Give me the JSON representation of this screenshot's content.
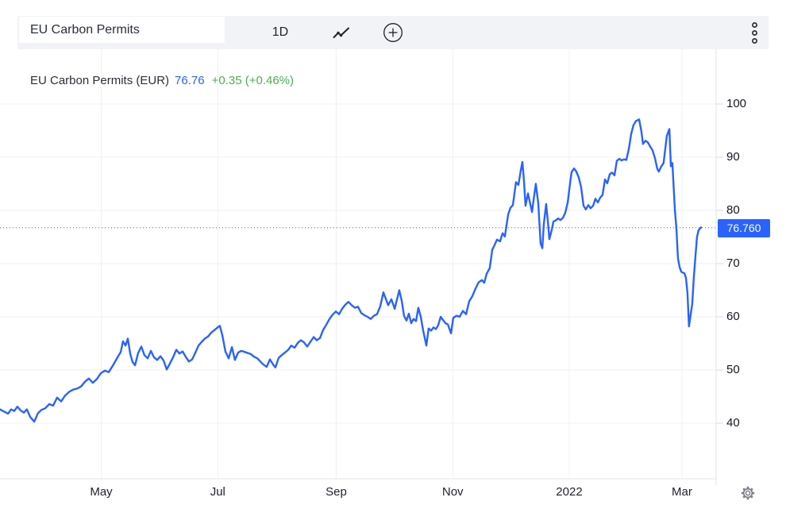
{
  "toolbar": {
    "symbol": "EU Carbon Permits",
    "interval": "1D",
    "chart_type_icon": "line-chart",
    "compare_icon": "plus-circle",
    "menu_icon": "kebab-menu"
  },
  "legend": {
    "title": "EU Carbon Permits (EUR)",
    "price": "76.76",
    "change": "+0.35 (+0.46%)"
  },
  "price_axis": {
    "last_price_label": "76.760"
  },
  "colors": {
    "line": "#2962FF",
    "label_bg": "#2962FF",
    "price_text": "#2962FF",
    "change_positive": "#4CAF50",
    "grid": "#eef0f3",
    "separator": "#e2e5ec",
    "tick": "#d8dbe2",
    "text_dark": "#1e222d",
    "axis_text": "#131722",
    "toolbar_bg": "#f1f3f6",
    "icon_gray": "#7a7e87"
  },
  "chart_data": {
    "type": "line",
    "title": "EU Carbon Permits (EUR)",
    "x_unit": "days since 2021-03-09",
    "x_span_days": 367,
    "x_ticks": [
      {
        "label": "May",
        "day": 53
      },
      {
        "label": "Jul",
        "day": 114
      },
      {
        "label": "Sep",
        "day": 176
      },
      {
        "label": "Nov",
        "day": 237
      },
      {
        "label": "2022",
        "day": 298
      },
      {
        "label": "Mar",
        "day": 357
      }
    ],
    "y_ticks": [
      100,
      90,
      80,
      70,
      60,
      50,
      40
    ],
    "ylim": [
      36,
      104
    ],
    "last_price": 76.76,
    "legend_position": "top-left",
    "grid": true,
    "series": [
      {
        "name": "EU Carbon Permits",
        "color": "#2962FF",
        "points": [
          [
            0,
            42.6
          ],
          [
            2.1,
            42.2
          ],
          [
            4.2,
            41.8
          ],
          [
            5.8,
            42.6
          ],
          [
            7.5,
            42.3
          ],
          [
            9.1,
            43.1
          ],
          [
            10.8,
            42.4
          ],
          [
            12.5,
            42
          ],
          [
            14.1,
            42.6
          ],
          [
            15.8,
            41.2
          ],
          [
            17.9,
            40.3
          ],
          [
            19.9,
            41.9
          ],
          [
            21.6,
            42.5
          ],
          [
            23.7,
            42.8
          ],
          [
            25.8,
            43.6
          ],
          [
            27.8,
            43.3
          ],
          [
            29.9,
            44.8
          ],
          [
            32,
            44.1
          ],
          [
            34.1,
            45.2
          ],
          [
            36.2,
            45.9
          ],
          [
            38.2,
            46.3
          ],
          [
            40.3,
            46.5
          ],
          [
            42.4,
            46.9
          ],
          [
            44.5,
            47.8
          ],
          [
            46.5,
            48.4
          ],
          [
            48.6,
            47.6
          ],
          [
            50.7,
            48.3
          ],
          [
            52.8,
            49.4
          ],
          [
            54.9,
            49.9
          ],
          [
            56.9,
            49.6
          ],
          [
            59,
            50.8
          ],
          [
            61.1,
            52.1
          ],
          [
            63.2,
            53.4
          ],
          [
            64.4,
            55.4
          ],
          [
            65.7,
            54.6
          ],
          [
            66.9,
            55.9
          ],
          [
            68.2,
            53
          ],
          [
            69.4,
            51.5
          ],
          [
            70.7,
            50.9
          ],
          [
            72.3,
            53.2
          ],
          [
            74,
            54.4
          ],
          [
            75.6,
            52.8
          ],
          [
            77.3,
            52.2
          ],
          [
            79,
            53.6
          ],
          [
            80.6,
            52.4
          ],
          [
            82.3,
            51.9
          ],
          [
            84,
            52.6
          ],
          [
            85.6,
            51.8
          ],
          [
            87.3,
            50.1
          ],
          [
            88.9,
            51.2
          ],
          [
            90.6,
            52.4
          ],
          [
            92.3,
            53.8
          ],
          [
            93.9,
            53.1
          ],
          [
            95.6,
            53.5
          ],
          [
            97.2,
            52.5
          ],
          [
            98.9,
            51.6
          ],
          [
            100.6,
            52
          ],
          [
            102.2,
            53.2
          ],
          [
            103.9,
            54.6
          ],
          [
            105.6,
            55.3
          ],
          [
            107.2,
            55.9
          ],
          [
            108.9,
            56.3
          ],
          [
            110.5,
            57
          ],
          [
            112.2,
            57.5
          ],
          [
            113.9,
            58
          ],
          [
            115.1,
            58.3
          ],
          [
            116.4,
            56.5
          ],
          [
            118,
            53.5
          ],
          [
            119.7,
            52.2
          ],
          [
            121.4,
            54.3
          ],
          [
            123,
            51.9
          ],
          [
            124.7,
            53.3
          ],
          [
            126.3,
            53.6
          ],
          [
            128,
            53.4
          ],
          [
            129.7,
            53.2
          ],
          [
            131.3,
            53
          ],
          [
            133,
            52.5
          ],
          [
            134.7,
            52.2
          ],
          [
            136.3,
            51.6
          ],
          [
            138,
            51
          ],
          [
            139.6,
            50.6
          ],
          [
            141.3,
            52
          ],
          [
            143,
            51
          ],
          [
            144.2,
            50.5
          ],
          [
            145.9,
            52.3
          ],
          [
            147.5,
            52.8
          ],
          [
            149.2,
            53.3
          ],
          [
            150.9,
            53.8
          ],
          [
            152.5,
            54.6
          ],
          [
            154.2,
            54.2
          ],
          [
            155.9,
            55.1
          ],
          [
            157.5,
            55.6
          ],
          [
            159.2,
            55.2
          ],
          [
            160.8,
            54.4
          ],
          [
            162.5,
            55.3
          ],
          [
            164.2,
            56.2
          ],
          [
            165.8,
            55.6
          ],
          [
            167.5,
            56
          ],
          [
            169.1,
            57.5
          ],
          [
            170.8,
            58.5
          ],
          [
            172.5,
            59.6
          ],
          [
            174.1,
            60.4
          ],
          [
            175.8,
            61
          ],
          [
            177.5,
            60.5
          ],
          [
            179.1,
            61.5
          ],
          [
            180.8,
            62.3
          ],
          [
            182.4,
            62.8
          ],
          [
            184.1,
            62.2
          ],
          [
            185.8,
            61.7
          ],
          [
            187.4,
            61.9
          ],
          [
            189.1,
            60.7
          ],
          [
            190.8,
            60.3
          ],
          [
            192.4,
            60
          ],
          [
            194.1,
            59.6
          ],
          [
            195.7,
            60.2
          ],
          [
            197.4,
            60.5
          ],
          [
            199.1,
            62
          ],
          [
            200.7,
            64.6
          ],
          [
            203.2,
            62.2
          ],
          [
            204.9,
            63.3
          ],
          [
            206.6,
            61.5
          ],
          [
            209,
            65
          ],
          [
            210.3,
            63
          ],
          [
            211.5,
            60.2
          ],
          [
            212.8,
            59.3
          ],
          [
            214,
            60.6
          ],
          [
            215.3,
            58.8
          ],
          [
            216.5,
            59.6
          ],
          [
            217.8,
            59.2
          ],
          [
            219,
            61.7
          ],
          [
            220.3,
            60
          ],
          [
            221.5,
            57.5
          ],
          [
            223.2,
            54.6
          ],
          [
            224.4,
            57.8
          ],
          [
            225.7,
            57.4
          ],
          [
            226.9,
            58
          ],
          [
            228.2,
            57.7
          ],
          [
            229.4,
            58.4
          ],
          [
            230.7,
            60
          ],
          [
            231.9,
            59.4
          ],
          [
            233.2,
            58.8
          ],
          [
            234.4,
            58.6
          ],
          [
            236.1,
            56.9
          ],
          [
            237.3,
            59.8
          ],
          [
            239,
            60.2
          ],
          [
            240.6,
            60
          ],
          [
            242.3,
            61.1
          ],
          [
            244,
            60.5
          ],
          [
            245.6,
            62.9
          ],
          [
            247.3,
            63.9
          ],
          [
            248.9,
            65.3
          ],
          [
            250.6,
            66.5
          ],
          [
            252.3,
            66.9
          ],
          [
            253.5,
            66.4
          ],
          [
            254.8,
            68.1
          ],
          [
            256.4,
            69.2
          ],
          [
            257.7,
            72.6
          ],
          [
            258.9,
            73.5
          ],
          [
            260.2,
            74.5
          ],
          [
            261.8,
            74.2
          ],
          [
            263.1,
            75.7
          ],
          [
            264.3,
            75.1
          ],
          [
            266,
            79.2
          ],
          [
            267.2,
            80.5
          ],
          [
            268.5,
            81
          ],
          [
            270.1,
            85.3
          ],
          [
            271.4,
            84.8
          ],
          [
            272.6,
            87.5
          ],
          [
            273.5,
            89.1
          ],
          [
            274.3,
            85.5
          ],
          [
            275.1,
            80.9
          ],
          [
            276.4,
            83.2
          ],
          [
            277.2,
            81.9
          ],
          [
            278.5,
            79.7
          ],
          [
            279.7,
            83
          ],
          [
            280.5,
            85
          ],
          [
            281.8,
            81.3
          ],
          [
            283,
            73.8
          ],
          [
            283.9,
            72.9
          ],
          [
            284.7,
            77.5
          ],
          [
            285.9,
            81.2
          ],
          [
            286.8,
            78
          ],
          [
            287.6,
            74.6
          ],
          [
            288.8,
            76.3
          ],
          [
            289.7,
            77.9
          ],
          [
            290.9,
            78.1
          ],
          [
            292.2,
            78.5
          ],
          [
            293.4,
            78.2
          ],
          [
            294.7,
            78.6
          ],
          [
            295.9,
            79.5
          ],
          [
            297.2,
            81.5
          ],
          [
            298,
            83.9
          ],
          [
            299.2,
            87.2
          ],
          [
            300.5,
            87.9
          ],
          [
            301.7,
            87.3
          ],
          [
            303,
            86.2
          ],
          [
            304.2,
            84.4
          ],
          [
            305.5,
            80.9
          ],
          [
            306.7,
            80.2
          ],
          [
            308,
            81
          ],
          [
            309.2,
            80.4
          ],
          [
            310.5,
            80.9
          ],
          [
            311.7,
            82.2
          ],
          [
            313,
            81.5
          ],
          [
            314.2,
            82.4
          ],
          [
            315.4,
            82.9
          ],
          [
            316.7,
            85.8
          ],
          [
            317.9,
            85.1
          ],
          [
            319.2,
            86.8
          ],
          [
            320.4,
            87.1
          ],
          [
            321.7,
            86.6
          ],
          [
            322.9,
            89.3
          ],
          [
            324.2,
            89.7
          ],
          [
            325.4,
            89.4
          ],
          [
            326.7,
            89.6
          ],
          [
            327.9,
            89.5
          ],
          [
            329.2,
            91.6
          ],
          [
            330.4,
            94.3
          ],
          [
            331.6,
            96
          ],
          [
            332.9,
            96.8
          ],
          [
            334.6,
            97.1
          ],
          [
            335.8,
            94.8
          ],
          [
            336.6,
            92.5
          ],
          [
            337.9,
            93.1
          ],
          [
            339.1,
            92.8
          ],
          [
            340.4,
            92
          ],
          [
            341.6,
            91.3
          ],
          [
            342.9,
            89.8
          ],
          [
            344.1,
            87.8
          ],
          [
            344.9,
            87.3
          ],
          [
            346.2,
            88.3
          ],
          [
            347.4,
            88.9
          ],
          [
            349.1,
            94
          ],
          [
            350.4,
            95.3
          ],
          [
            351.2,
            88.3
          ],
          [
            352,
            88.9
          ],
          [
            353.3,
            80.2
          ],
          [
            354.1,
            76.5
          ],
          [
            354.9,
            71
          ],
          [
            355.8,
            69.3
          ],
          [
            356.6,
            68.5
          ],
          [
            357.4,
            68.3
          ],
          [
            358.3,
            68.2
          ],
          [
            359.1,
            67.3
          ],
          [
            359.9,
            64.5
          ],
          [
            360.7,
            58.2
          ],
          [
            361.6,
            60.5
          ],
          [
            362.4,
            62.4
          ],
          [
            363.2,
            67.4
          ],
          [
            364.1,
            71.5
          ],
          [
            364.9,
            75
          ],
          [
            365.7,
            76.3
          ],
          [
            366.5,
            76.6
          ],
          [
            367,
            76.8
          ]
        ]
      }
    ]
  }
}
